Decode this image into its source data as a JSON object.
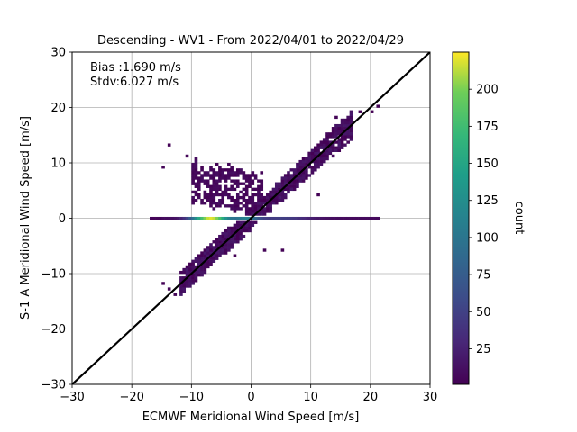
{
  "chart_data": {
    "type": "heatmap",
    "title": "Descending - WV1 - From 2022/04/01 to 2022/04/29",
    "xlabel": "ECMWF Meridional Wind Speed [m/s]",
    "ylabel": "S-1 A Meridional Wind Speed [m/s]",
    "xlim": [
      -30,
      30
    ],
    "ylim": [
      -30,
      30
    ],
    "xticks": [
      -30,
      -20,
      -10,
      0,
      10,
      20,
      30
    ],
    "yticks": [
      -30,
      -20,
      -10,
      0,
      10,
      20,
      30
    ],
    "tick_labels": [
      "−30",
      "−20",
      "−10",
      "0",
      "10",
      "20",
      "30"
    ],
    "grid": true,
    "reference_line": {
      "slope": 1,
      "intercept": 0,
      "color": "#000000"
    },
    "annotations": {
      "bias": "Bias :1.690 m/s",
      "stdv": "Stdv:6.027 m/s"
    },
    "colorbar": {
      "label": "count",
      "range": [
        1,
        225
      ],
      "ticks": [
        25,
        50,
        75,
        100,
        125,
        150,
        175,
        200
      ],
      "colormap": "viridis"
    },
    "clusters": [
      {
        "name": "diagonal",
        "x_range": [
          -12,
          17
        ],
        "y_equals_x_spread": 1.5
      },
      {
        "name": "zero-band",
        "y": 0,
        "x_range": [
          -17,
          21
        ],
        "peak_x": -7,
        "peak_count": 220
      },
      {
        "name": "upper-left-arm",
        "x_range": [
          -10,
          2
        ],
        "y_range": [
          2,
          10
        ]
      }
    ],
    "colors": {
      "low": "#440154",
      "mid": "#21918c",
      "high": "#fde725"
    }
  }
}
